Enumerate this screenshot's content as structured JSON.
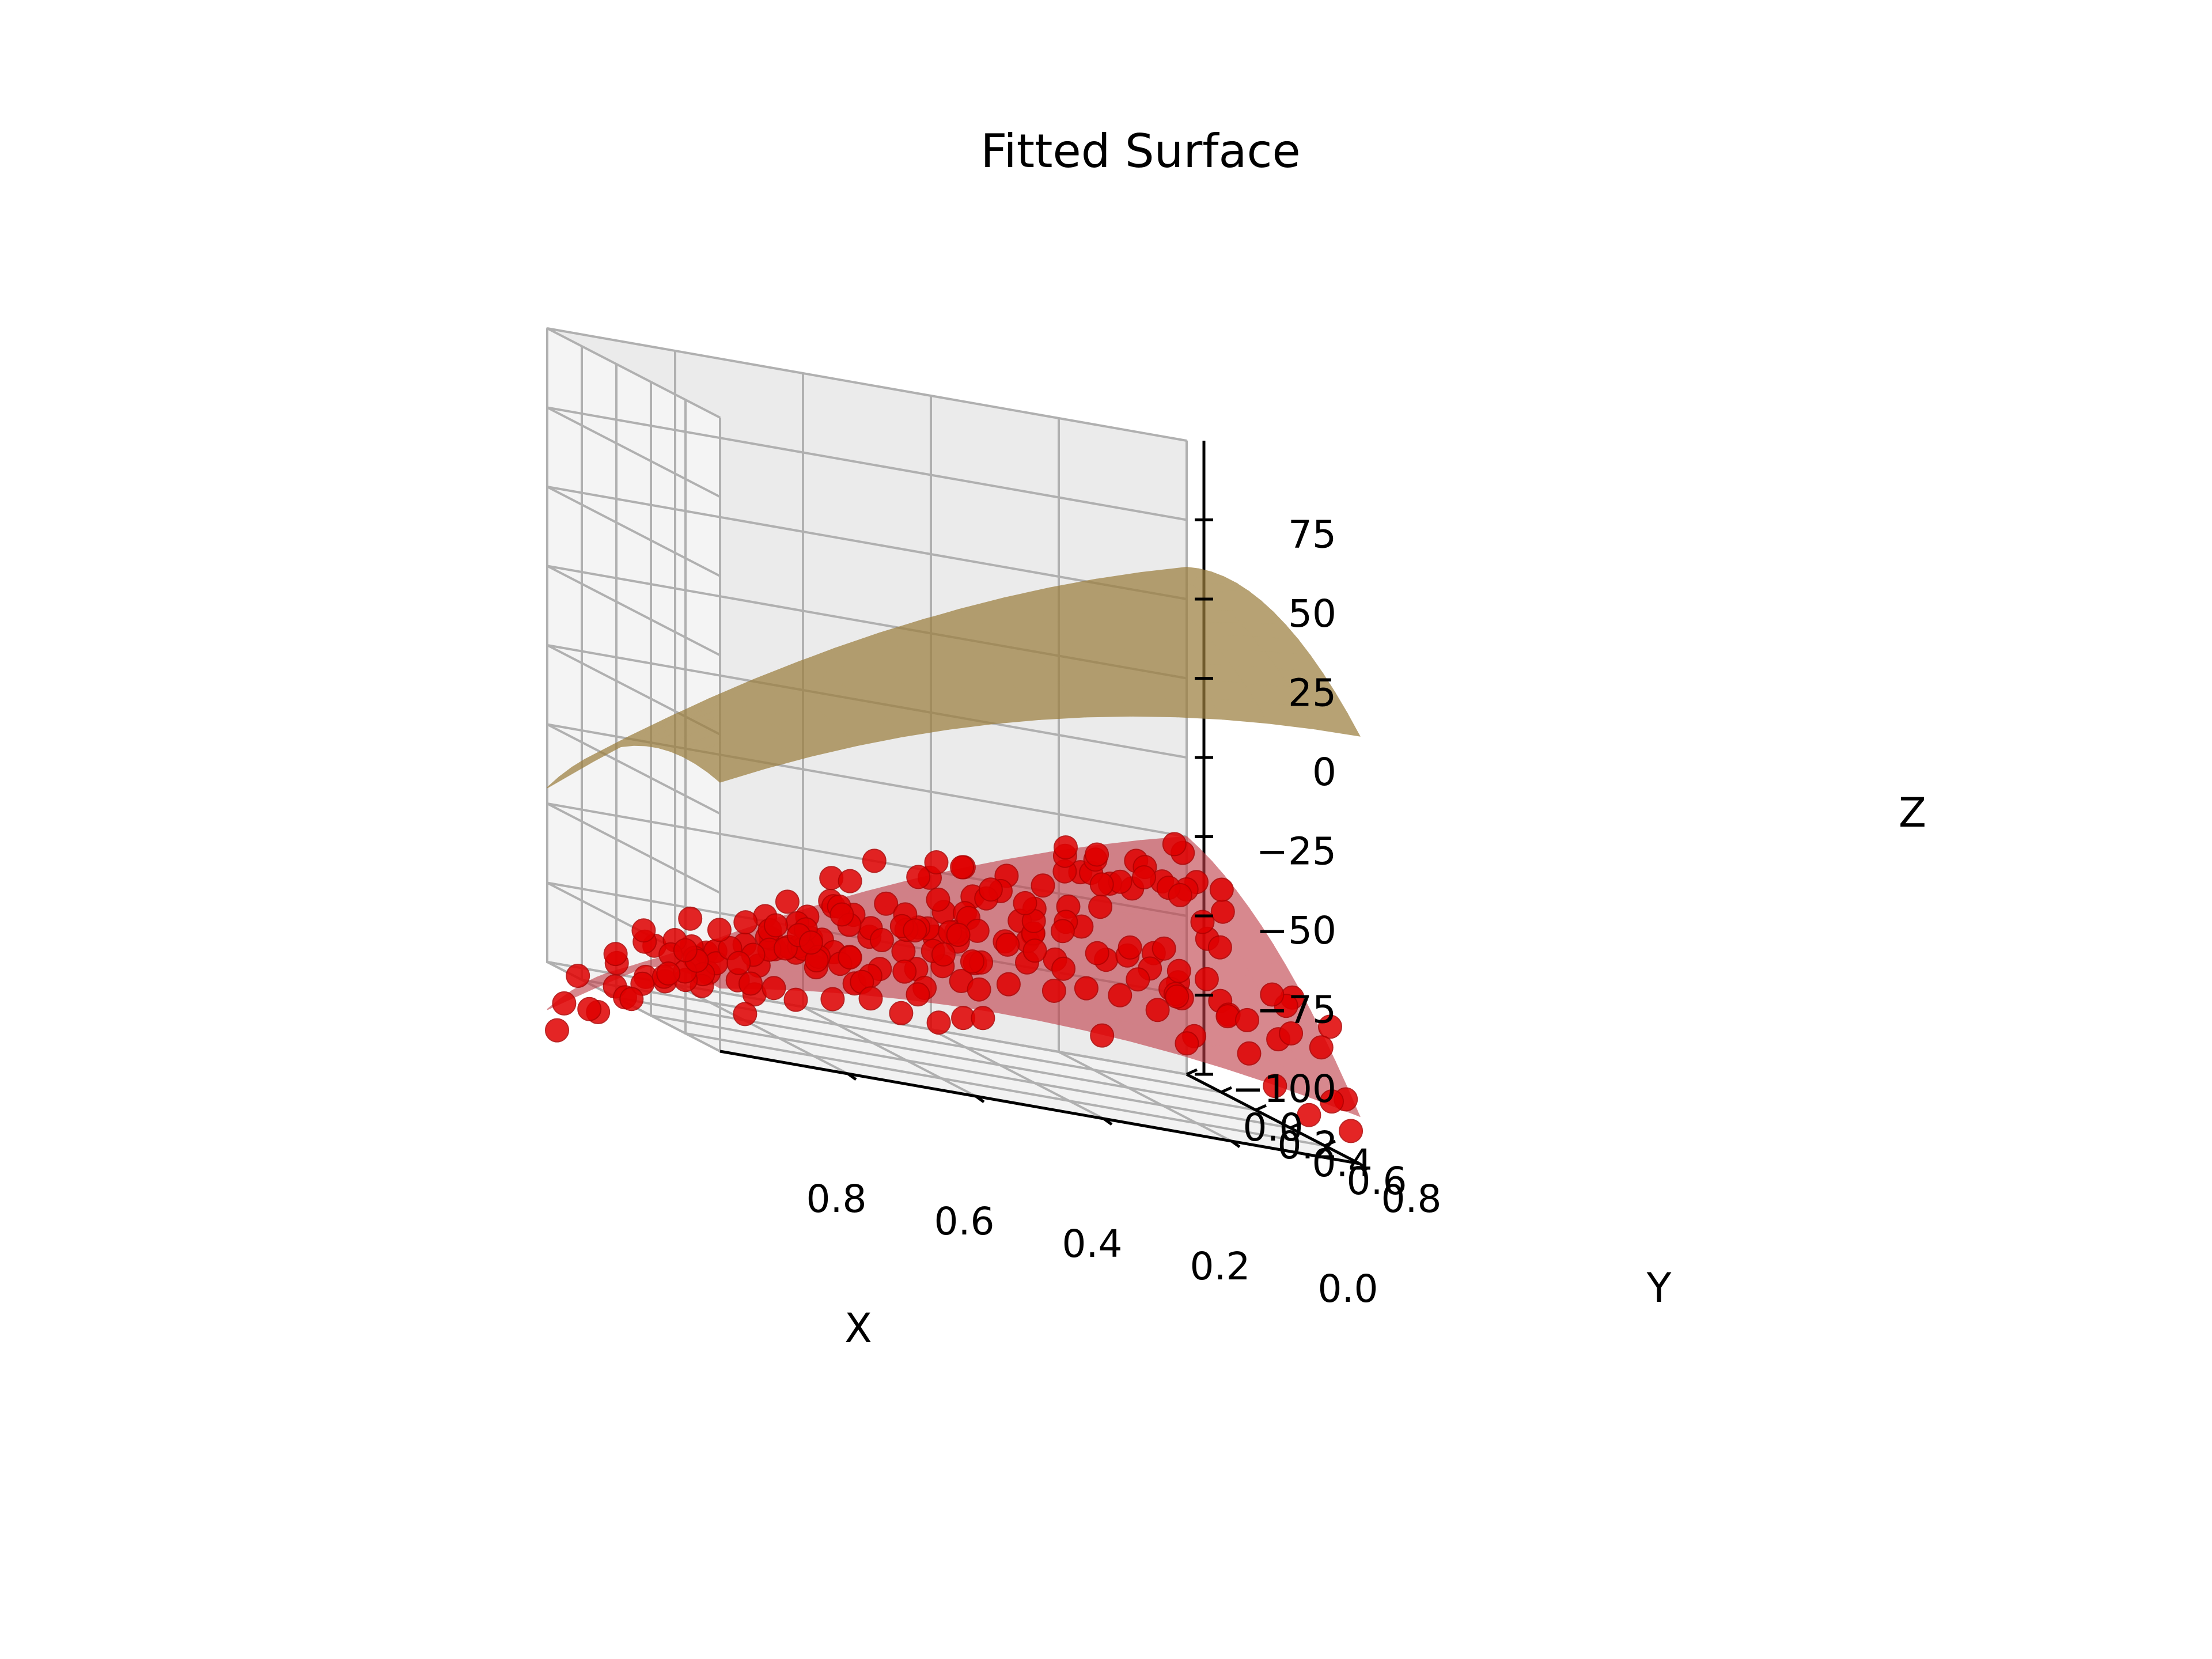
{
  "chart_data": {
    "type": "scatter",
    "subtype": "3d-surface",
    "title": "Fitted Surface",
    "xlabel": "X",
    "ylabel": "Y",
    "zlabel": "Z",
    "xlim": [
      0,
      1
    ],
    "ylim": [
      0,
      1
    ],
    "zlim": [
      -100,
      100
    ],
    "x_ticks": [
      "0.0",
      "0.2",
      "0.4",
      "0.6",
      "0.8"
    ],
    "y_ticks": [
      "0.0",
      "0.2",
      "0.4",
      "0.6",
      "0.8"
    ],
    "z_ticks": [
      "−100",
      "−75",
      "−50",
      "−25",
      "0",
      "25",
      "50",
      "75"
    ],
    "grid": true,
    "surfaces": [
      {
        "color": "#9c7f3f",
        "corner_z": {
          "x0y0": 85,
          "x1y0": -20,
          "x0y1": 60,
          "x1y1": 10
        },
        "curvature": -25
      },
      {
        "color": "#c0404a",
        "corner_z": {
          "x0y0": -5,
          "x1y0": -95,
          "x0y1": -65,
          "x1y1": -60
        },
        "curvature": -20
      }
    ],
    "scatter_color": "#ee0000",
    "scatter_note": "noisy samples around the lower fitted surface"
  }
}
